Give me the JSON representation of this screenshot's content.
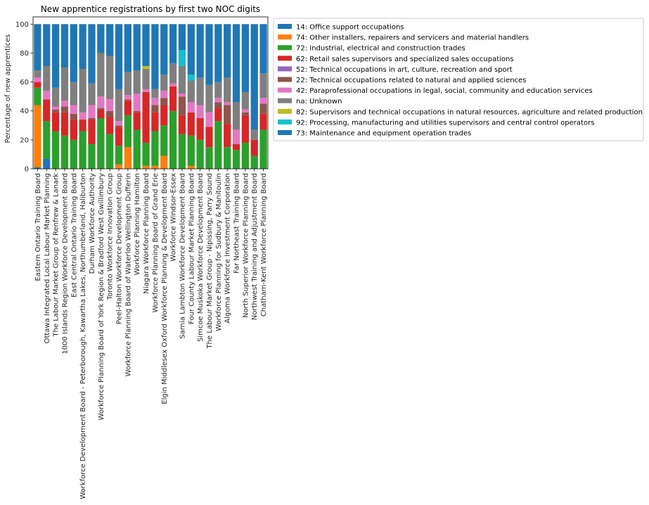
{
  "chart_data": {
    "type": "bar",
    "stacked": true,
    "title": "New apprentice registrations by first two NOC digits",
    "xlabel": "",
    "ylabel": "Percentage of new apprentices",
    "ylim": [
      0,
      105
    ],
    "yticks": [
      0,
      20,
      40,
      60,
      80,
      100
    ],
    "grid": false,
    "legend_position": "outside-right",
    "categories": [
      "Eastern Ontario Training Board",
      "Ottawa Integrated Local Labour Market Planning",
      "The Labour Market Group of Renfrew & Lanark",
      "1000 Islands Region Workforce Development Board",
      "East Central Ontario Training Board",
      "Workforce Development Board - Peterborough, Kawartha Lakes, Northumberland, Haliburton",
      "Durham Workforce Authority",
      "Workforce Planning Board of York Region & Bradford West Gwillimbury",
      "Toronto Workforce Innovation Group",
      "Peel-Halton Workforce Development Group",
      "Workforce Planning Board of Waterloo Wellington Dufferin",
      "Workforce Planning Hamilton",
      "Niagara Workforce Planning Board",
      "Workforce Planning Board of Grand Erie",
      "Elgin Middlesex Oxford Workforce Planning & Development Board",
      "Workforce Windsor-Essex",
      "Sarnia Lambton Workforce Development Board",
      "Four County Labour Market Planning Board",
      "Simcoe Muskoka Workforce Development Board",
      "The Labour Market Group - Nipissing, Parry Sound",
      "Workforce Planning for Sudbury & Manitoulin",
      "Algoma Workforce Investment Corporation",
      "Far Northeast Training Board",
      "North Superior Workforce Planning Board",
      "Northwest Training and Adjustment Board",
      "Chatham-Kent Workforce Planning Board"
    ],
    "series": [
      {
        "name": "14: Office support occupations",
        "color": "#1f77b4",
        "values": [
          1,
          7,
          0,
          0,
          0,
          0,
          0,
          0,
          0,
          0,
          0,
          0,
          0,
          0,
          0,
          0,
          0,
          0,
          0,
          0,
          0,
          0,
          0,
          0,
          0,
          0
        ]
      },
      {
        "name": "74: Other installers, repairers and servicers and material handlers",
        "color": "#ff7f0e",
        "values": [
          43,
          0,
          0,
          0,
          0,
          0,
          0,
          0,
          0,
          3,
          15,
          0,
          2,
          2,
          9,
          0,
          0,
          2,
          0,
          0,
          0,
          0,
          0,
          0,
          0,
          0
        ]
      },
      {
        "name": "72: Industrial, electrical and construction trades",
        "color": "#2ca02c",
        "values": [
          12,
          26,
          26,
          23,
          20,
          26,
          17,
          35,
          24,
          13,
          22,
          27,
          16,
          24,
          21,
          40,
          24,
          21,
          20,
          15,
          33,
          15,
          13,
          18,
          9,
          27
        ]
      },
      {
        "name": "62: Retail sales supervisors and specialized sales occupations",
        "color": "#d62728",
        "values": [
          4,
          15,
          13,
          16,
          14,
          8,
          17,
          6,
          12,
          13,
          10,
          12,
          35,
          13,
          14,
          17,
          13,
          16,
          15,
          14,
          9,
          16,
          4,
          19,
          11,
          11
        ]
      },
      {
        "name": "52: Technical occupations in art, culture, recreation and sport",
        "color": "#9467bd",
        "values": [
          0,
          0,
          0,
          0,
          0,
          0,
          0,
          0,
          0,
          0,
          0,
          0,
          0,
          0,
          0,
          0,
          0,
          0,
          0,
          0,
          0,
          0,
          0,
          0,
          0,
          0
        ]
      },
      {
        "name": "22: Technical occupations related to natural and applied sciences",
        "color": "#8c564b",
        "values": [
          0,
          0,
          2,
          4,
          4,
          0,
          1,
          1,
          4,
          1,
          1,
          1,
          0,
          5,
          5,
          0,
          13,
          0,
          0,
          0,
          4,
          13,
          0,
          2,
          0,
          7
        ]
      },
      {
        "name": "42: Paraprofessional occupations in legal, social, community and education services",
        "color": "#e377c2",
        "values": [
          3,
          6,
          2,
          4,
          6,
          5,
          9,
          8,
          8,
          3,
          3,
          12,
          2,
          5,
          5,
          2,
          2,
          7,
          9,
          10,
          3,
          2,
          10,
          2,
          0,
          4
        ]
      },
      {
        "name": "na: Unknown",
        "color": "#7f7f7f",
        "values": [
          5,
          17,
          13,
          23,
          16,
          30,
          15,
          30,
          30,
          22,
          16,
          16,
          14,
          6,
          11,
          14,
          19,
          15,
          19,
          19,
          11,
          17,
          19,
          12,
          7,
          17
        ]
      },
      {
        "name": "82: Supervisors and technical occupations in natural resources, agriculture and related production",
        "color": "#bcbd22",
        "values": [
          0,
          0,
          0,
          0,
          0,
          0,
          0,
          0,
          0,
          0,
          0,
          0,
          2,
          0,
          0,
          0,
          0,
          0,
          0,
          0,
          0,
          0,
          0,
          0,
          0,
          0
        ]
      },
      {
        "name": "92: Processing, manufacturing and utilities supervisors and central control operators",
        "color": "#17becf",
        "values": [
          0,
          0,
          0,
          0,
          0,
          0,
          0,
          0,
          0,
          0,
          0,
          0,
          0,
          0,
          0,
          0,
          11,
          4,
          0,
          0,
          0,
          0,
          0,
          0,
          0,
          0
        ]
      },
      {
        "name": "73: Maintenance and equipment operation trades",
        "color": "#1f77b4",
        "values": [
          32,
          29,
          44,
          30,
          40,
          31,
          41,
          20,
          22,
          45,
          33,
          32,
          29,
          45,
          35,
          27,
          18,
          35,
          37,
          42,
          40,
          37,
          54,
          47,
          73,
          34
        ]
      }
    ]
  }
}
